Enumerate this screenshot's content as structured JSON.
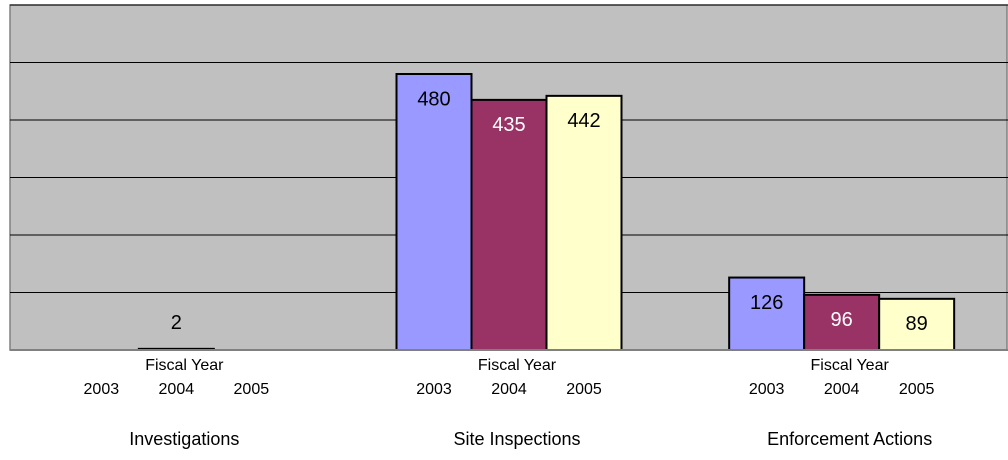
{
  "chart_data": {
    "type": "bar",
    "categories": [
      "Investigations",
      "Site Inspections",
      "Enforcement Actions"
    ],
    "group_label": "Fiscal Year",
    "series": [
      {
        "name": "2003",
        "color": "#9999ff",
        "values": [
          null,
          480,
          126
        ]
      },
      {
        "name": "2004",
        "color": "#993366",
        "values": [
          2,
          435,
          96
        ]
      },
      {
        "name": "2005",
        "color": "#ffffcc",
        "values": [
          null,
          442,
          89
        ]
      }
    ],
    "ylim": [
      0,
      600
    ],
    "yticks": [
      0,
      100,
      200,
      300,
      400,
      500,
      600
    ],
    "grid": true
  }
}
